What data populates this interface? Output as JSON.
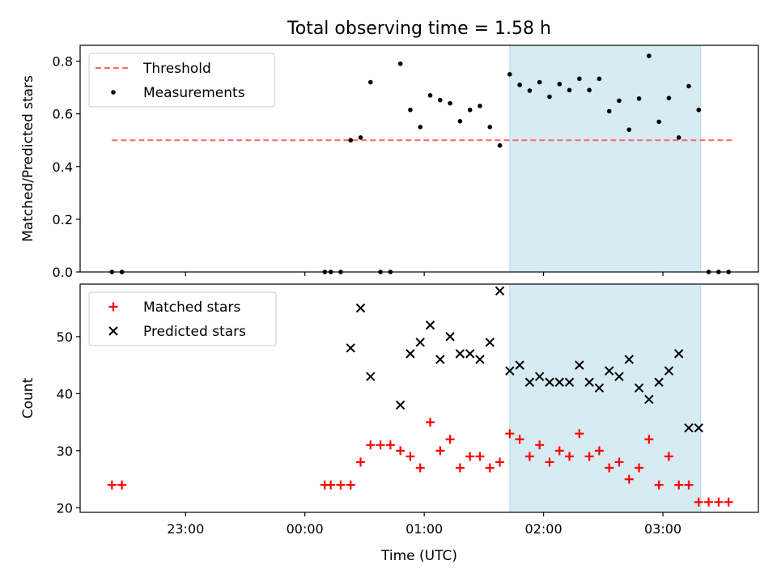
{
  "title": "Total observing time = 1.58 h",
  "colors": {
    "threshold": "#ff6666",
    "measurement": "#000000",
    "matched": "#ff0000",
    "predicted": "#000000",
    "observing_window": "#add8e6"
  },
  "chart_data": [
    {
      "type": "scatter",
      "panel": "top",
      "ylabel": "Matched/Predicted stars",
      "xlim": [
        "22:07",
        "03:48"
      ],
      "ylim": [
        0,
        0.86
      ],
      "yticks": [
        0.0,
        0.2,
        0.4,
        0.6,
        0.8
      ],
      "ytick_labels": [
        "0.0",
        "0.2",
        "0.4",
        "0.6",
        "0.8"
      ],
      "legend_position": "upper-left",
      "highlight_span": [
        "01:43",
        "03:19"
      ],
      "series": [
        {
          "name": "Threshold",
          "kind": "dashed-line",
          "x": [
            "22:23",
            "03:35"
          ],
          "y": [
            0.5,
            0.5
          ]
        },
        {
          "name": "Measurements",
          "kind": "dot",
          "x": [
            "22:23",
            "22:28",
            "00:10",
            "00:13",
            "00:18",
            "00:23",
            "00:28",
            "00:33",
            "00:38",
            "00:43",
            "00:48",
            "00:53",
            "00:58",
            "01:03",
            "01:08",
            "01:13",
            "01:18",
            "01:23",
            "01:28",
            "01:33",
            "01:38",
            "01:43",
            "01:48",
            "01:53",
            "01:58",
            "02:03",
            "02:08",
            "02:13",
            "02:18",
            "02:23",
            "02:28",
            "02:33",
            "02:38",
            "02:43",
            "02:48",
            "02:53",
            "02:58",
            "03:03",
            "03:08",
            "03:13",
            "03:18",
            "03:23",
            "03:28",
            "03:33"
          ],
          "y": [
            0.0,
            0.0,
            0.0,
            0.0,
            0.0,
            0.5,
            0.51,
            0.72,
            0.0,
            0.0,
            0.79,
            0.615,
            0.55,
            0.67,
            0.652,
            0.64,
            0.572,
            0.615,
            0.63,
            0.55,
            0.48,
            0.75,
            0.71,
            0.688,
            0.72,
            0.665,
            0.713,
            0.69,
            0.733,
            0.69,
            0.733,
            0.61,
            0.65,
            0.54,
            0.658,
            0.82,
            0.57,
            0.66,
            0.51,
            0.705,
            0.615,
            0.0,
            0.0,
            0.0
          ]
        }
      ]
    },
    {
      "type": "scatter",
      "panel": "bottom",
      "xlabel": "Time (UTC)",
      "ylabel": "Count",
      "xlim": [
        "22:07",
        "03:48"
      ],
      "ylim": [
        19.2,
        59.2
      ],
      "xticks": [
        "23:00",
        "00:00",
        "01:00",
        "02:00",
        "03:00"
      ],
      "yticks": [
        20,
        30,
        40,
        50
      ],
      "ytick_labels": [
        "20",
        "30",
        "40",
        "50"
      ],
      "legend_position": "upper-left",
      "highlight_span": [
        "01:43",
        "03:19"
      ],
      "series": [
        {
          "name": "Matched stars",
          "kind": "plus",
          "x": [
            "22:23",
            "22:28",
            "00:10",
            "00:13",
            "00:18",
            "00:23",
            "00:28",
            "00:33",
            "00:38",
            "00:43",
            "00:48",
            "00:53",
            "00:58",
            "01:03",
            "01:08",
            "01:13",
            "01:18",
            "01:23",
            "01:28",
            "01:33",
            "01:38",
            "01:43",
            "01:48",
            "01:53",
            "01:58",
            "02:03",
            "02:08",
            "02:13",
            "02:18",
            "02:23",
            "02:28",
            "02:33",
            "02:38",
            "02:43",
            "02:48",
            "02:53",
            "02:58",
            "03:03",
            "03:08",
            "03:13",
            "03:18",
            "03:23",
            "03:28",
            "03:33"
          ],
          "y": [
            24,
            24,
            24,
            24,
            24,
            24,
            28,
            31,
            31,
            31,
            30,
            29,
            27,
            35,
            30,
            32,
            27,
            29,
            29,
            27,
            28,
            33,
            32,
            29,
            31,
            28,
            30,
            29,
            33,
            29,
            30,
            27,
            28,
            25,
            27,
            32,
            24,
            29,
            24,
            24,
            21,
            21,
            21,
            21
          ]
        },
        {
          "name": "Predicted stars",
          "kind": "x",
          "x": [
            "00:23",
            "00:28",
            "00:33",
            "00:48",
            "00:53",
            "00:58",
            "01:03",
            "01:08",
            "01:13",
            "01:18",
            "01:23",
            "01:28",
            "01:33",
            "01:38",
            "01:43",
            "01:48",
            "01:53",
            "01:58",
            "02:03",
            "02:08",
            "02:13",
            "02:18",
            "02:23",
            "02:28",
            "02:33",
            "02:38",
            "02:43",
            "02:48",
            "02:53",
            "02:58",
            "03:03",
            "03:08",
            "03:13",
            "03:18"
          ],
          "y": [
            48,
            55,
            43,
            38,
            47,
            49,
            52,
            46,
            50,
            47,
            47,
            46,
            49,
            58,
            44,
            45,
            42,
            43,
            42,
            42,
            42,
            45,
            42,
            41,
            44,
            43,
            46,
            41,
            39,
            42,
            44,
            47,
            34,
            34
          ]
        }
      ]
    }
  ]
}
